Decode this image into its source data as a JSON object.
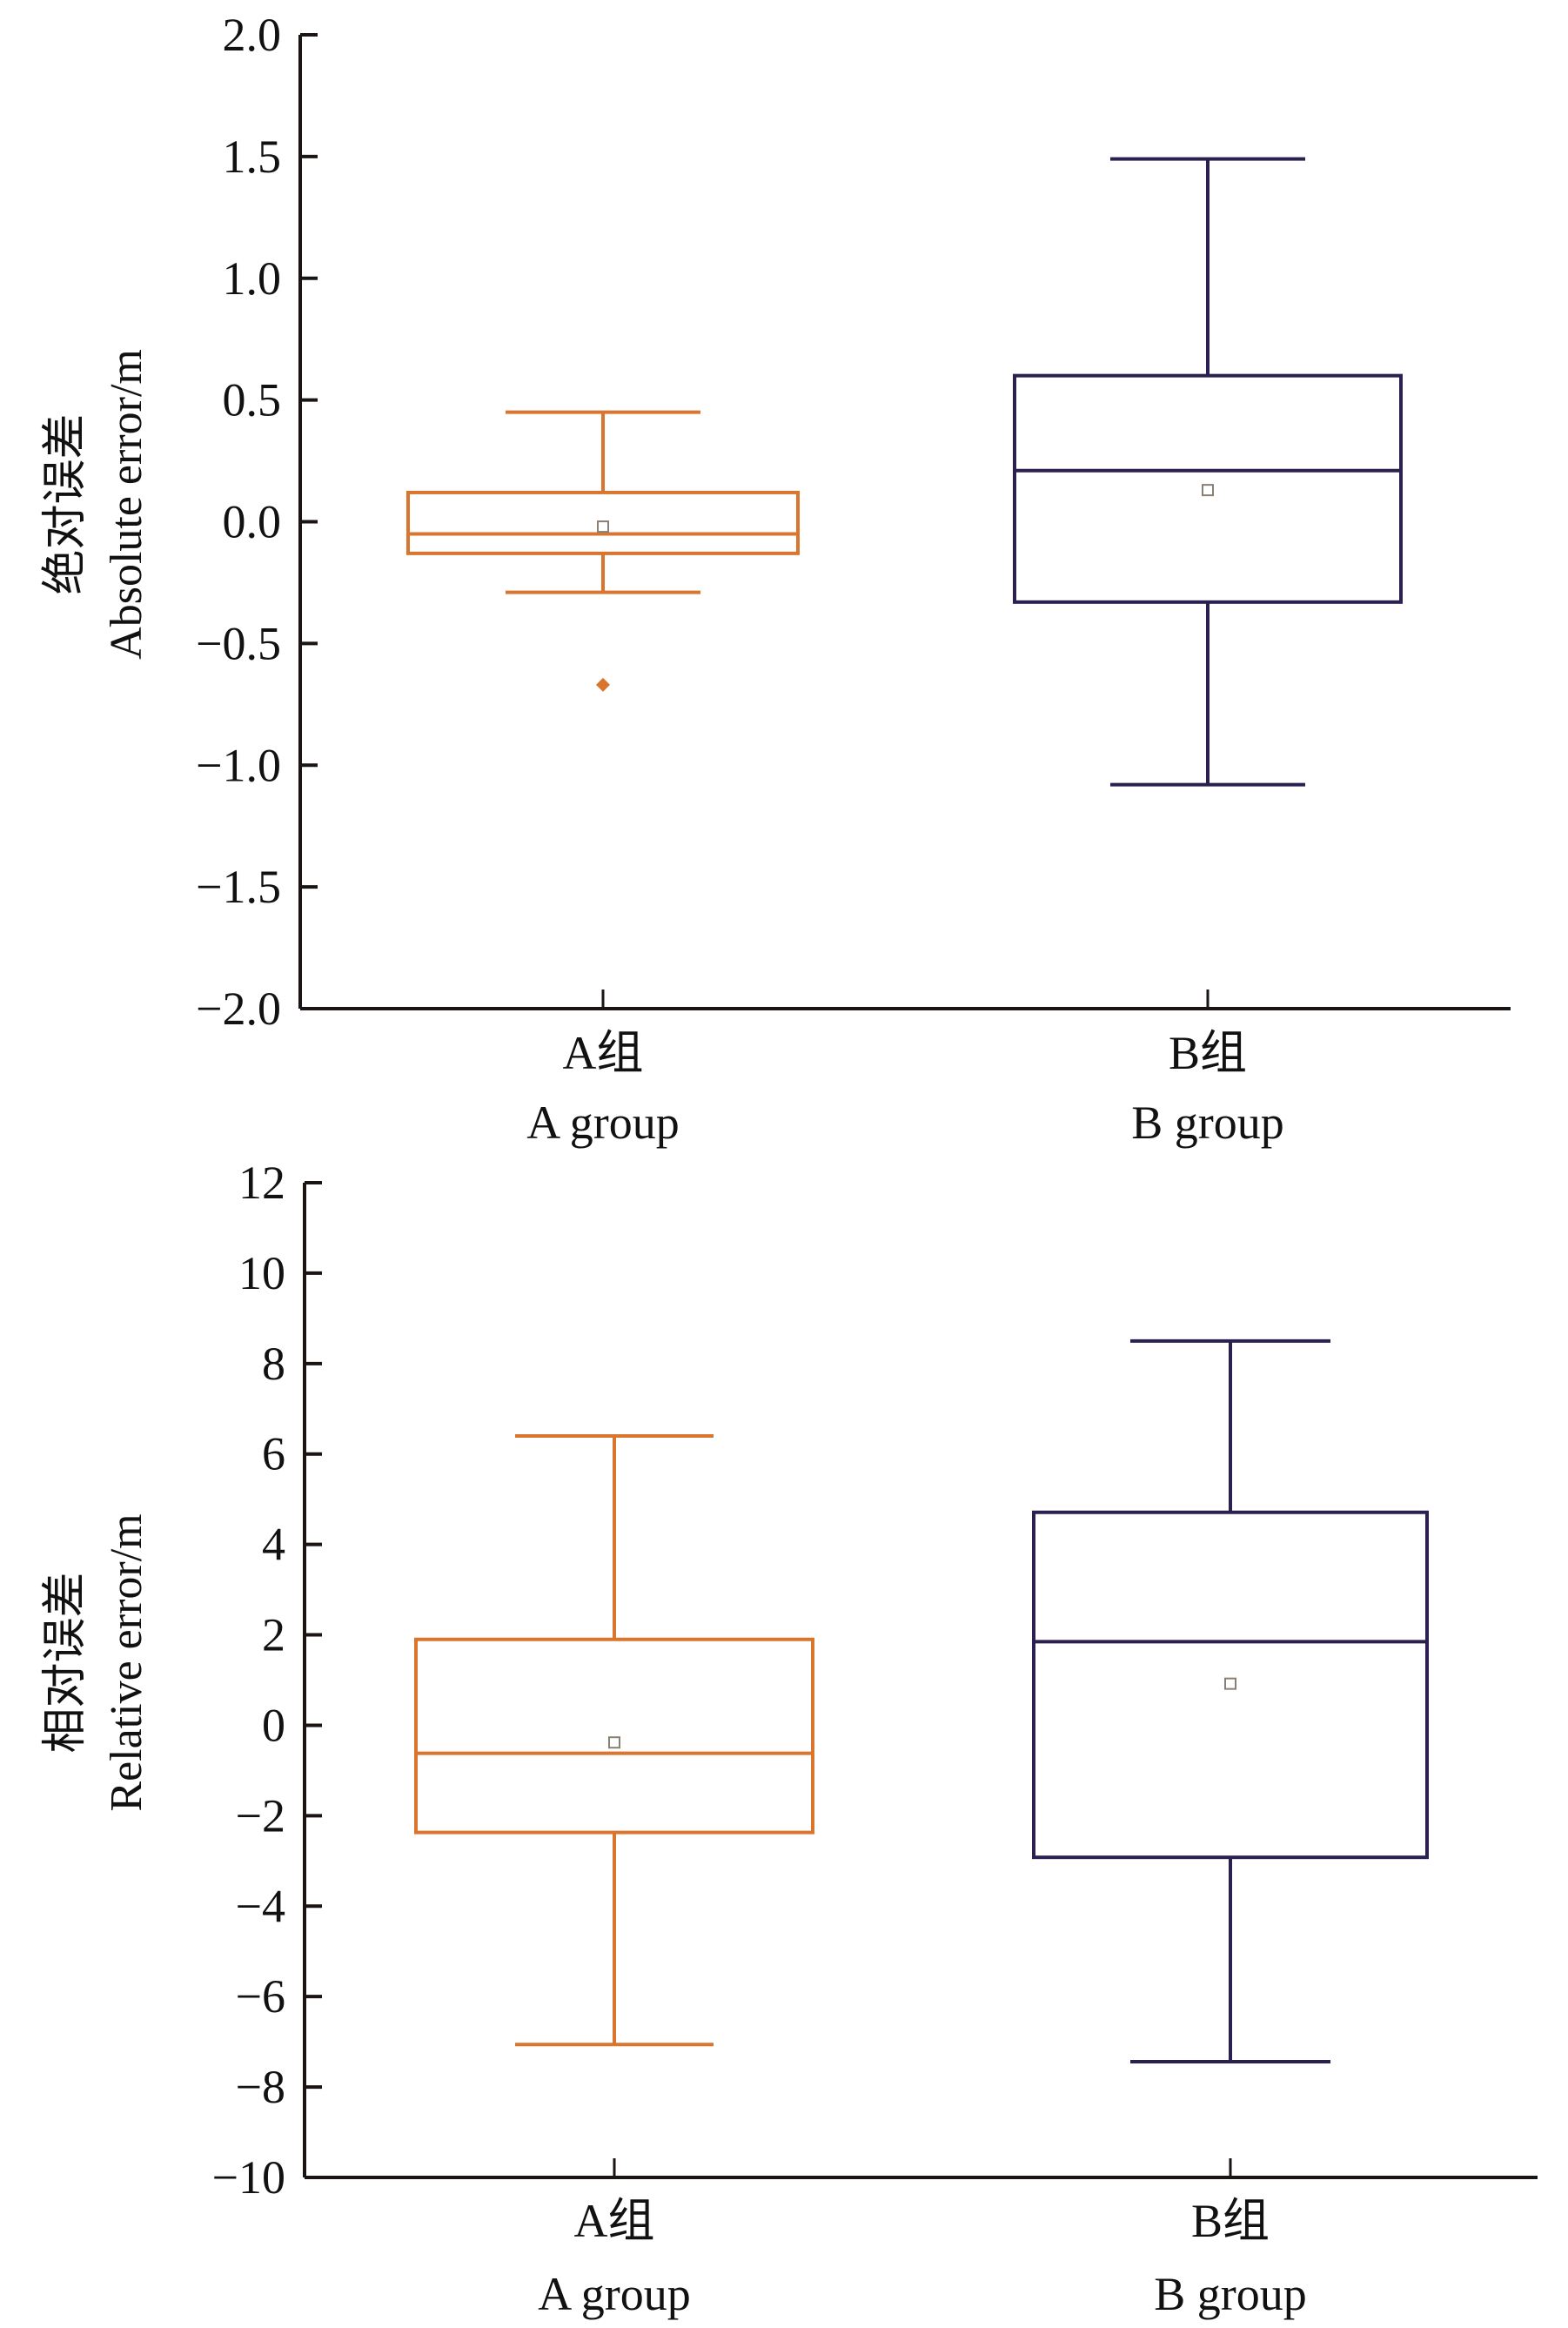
{
  "chart_data": [
    {
      "type": "boxplot",
      "title": "",
      "ylabel_cn": "绝对误差",
      "ylabel": "Absolute error/m",
      "xlabel": "",
      "ylim": [
        -2.0,
        2.0
      ],
      "yticks": [
        2.0,
        1.5,
        1.0,
        0.5,
        0.0,
        -0.5,
        -1.0,
        -1.5,
        -2.0
      ],
      "ytick_labels": [
        "2.0",
        "1.5",
        "1.0",
        "0.5",
        "0.0",
        "−0.5",
        "−1.0",
        "−1.5",
        "−2.0"
      ],
      "grid": false,
      "categories": [
        {
          "label_cn": "A组",
          "label": "A group"
        },
        {
          "label_cn": "B组",
          "label": "B group"
        }
      ],
      "series": [
        {
          "name": "A group",
          "color": "#d9752f",
          "whisker_high": 0.45,
          "q3": 0.12,
          "median": -0.05,
          "q1": -0.13,
          "whisker_low": -0.29,
          "mean": -0.02,
          "outliers": [
            -0.67
          ]
        },
        {
          "name": "B group",
          "color": "#2b2050",
          "whisker_high": 1.49,
          "q3": 0.6,
          "median": 0.21,
          "q1": -0.33,
          "whisker_low": -1.08,
          "mean": 0.13,
          "outliers": []
        }
      ]
    },
    {
      "type": "boxplot",
      "title": "",
      "ylabel_cn": "相对误差",
      "ylabel": "Relative error/m",
      "xlabel": "",
      "ylim": [
        -10,
        12
      ],
      "yticks": [
        12,
        10,
        8,
        6,
        4,
        2,
        0,
        -2,
        -4,
        -6,
        -8,
        -10
      ],
      "ytick_labels": [
        "12",
        "10",
        "8",
        "6",
        "4",
        "2",
        "0",
        "−2",
        "−4",
        "−6",
        "−8",
        "−10"
      ],
      "grid": false,
      "categories": [
        {
          "label_cn": "A组",
          "label": "A group"
        },
        {
          "label_cn": "B组",
          "label": "B group"
        }
      ],
      "series": [
        {
          "name": "A group",
          "color": "#d9752f",
          "whisker_high": 6.4,
          "q3": 1.9,
          "median": -0.62,
          "q1": -2.37,
          "whisker_low": -7.06,
          "mean": -0.38,
          "outliers": []
        },
        {
          "name": "B group",
          "color": "#2b2050",
          "whisker_high": 8.5,
          "q3": 4.71,
          "median": 1.85,
          "q1": -2.92,
          "whisker_low": -7.44,
          "mean": 0.92,
          "outliers": []
        }
      ]
    }
  ]
}
